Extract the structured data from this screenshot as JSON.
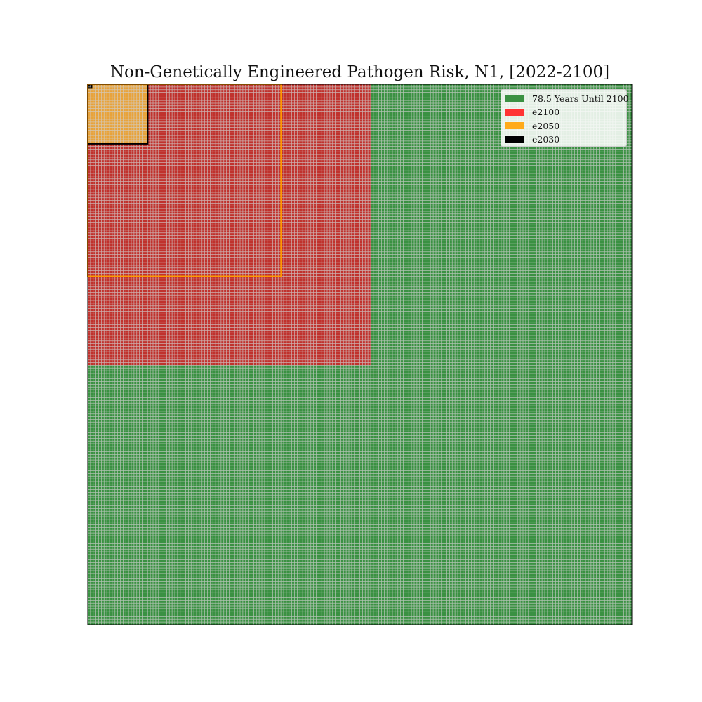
{
  "chart_data": {
    "type": "heatmap",
    "title": "Non-Genetically Engineered Pathogen Risk, N1, [2022-2100]",
    "xlabel": "",
    "ylabel": "",
    "grid": true,
    "grid_cells_per_side": 200,
    "cell_color": "#3a9142",
    "grid_line_color": "#cfcfcf",
    "regions": [
      {
        "key": "total",
        "fraction": 1.0,
        "fill": "#3a9142",
        "outline": "#000000"
      },
      {
        "key": "e2100",
        "fraction": 0.2704,
        "fill": "#c0322d",
        "outline": null
      },
      {
        "key": "e2050",
        "fraction": 0.01215,
        "fill": "#e8a33b",
        "outline": "#000000"
      },
      {
        "key": "e2030",
        "fraction": 5e-05,
        "fill": "#000000",
        "outline": "#000000"
      }
    ],
    "highlight_box": {
      "fraction": 0.1262,
      "outline": "#ff9900"
    },
    "legend_placement": "top-right",
    "legend": [
      {
        "label": "78.5 Years Until 2100",
        "color": "#3a9142"
      },
      {
        "label": "e2100",
        "color": "#ff3333"
      },
      {
        "label": "e2050",
        "color": "#ffaa1a"
      },
      {
        "label": "e2030",
        "color": "#000000"
      }
    ]
  }
}
